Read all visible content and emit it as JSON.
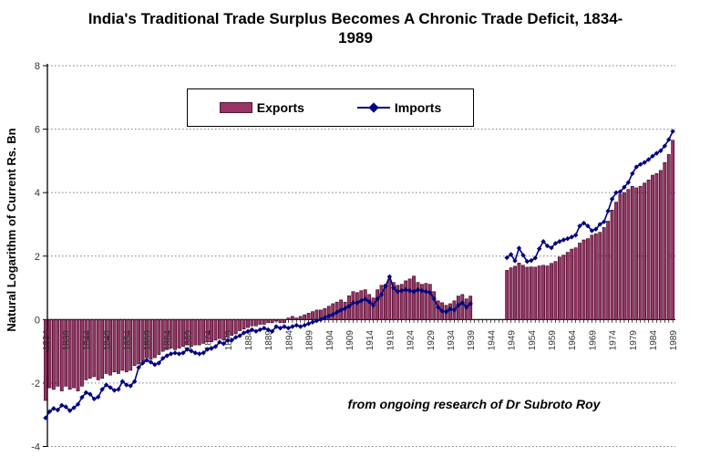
{
  "title": "India's Traditional Trade Surplus Becomes A Chronic Trade Deficit, 1834-1989",
  "annotation": "from ongoing research of Dr Subroto Roy",
  "legend": {
    "exports_label": "Exports",
    "imports_label": "Imports"
  },
  "colors": {
    "bar_fill": "#993366",
    "bar_border": "#33001a",
    "line": "#000080",
    "grid": "#7a7a7a",
    "axis": "#000000",
    "tick_text": "#333333"
  },
  "chart_data": {
    "type": "bar",
    "combo": true,
    "title": "India's Traditional Trade Surplus Becomes A Chronic Trade Deficit, 1834-1989",
    "xlabel": "",
    "ylabel": "Natural Logarithm of Current Rs. Bn",
    "ylim": [
      -4,
      8
    ],
    "y_ticks": [
      8,
      6,
      4,
      2,
      0,
      -2,
      -4
    ],
    "grid": "horizontal-dotted",
    "legend_position": "top-center",
    "x_start": 1834,
    "x_end": 1989,
    "data_gap_years": [
      1940,
      1947
    ],
    "x_tick_labels": [
      "1834",
      "1839",
      "1844",
      "1849",
      "1854",
      "1859",
      "1864",
      "1869",
      "1874",
      "1879",
      "1884",
      "1889",
      "1894",
      "1899",
      "1904",
      "1909",
      "1914",
      "1919",
      "1924",
      "1929",
      "1934",
      "1939",
      "1944",
      "1949",
      "1954",
      "1959",
      "1964",
      "1969",
      "1974",
      "1979",
      "1984",
      "1989"
    ],
    "series": [
      {
        "name": "Exports",
        "type": "bar",
        "color": "#993366",
        "values": [
          -2.55,
          -2.15,
          -2.2,
          -2.1,
          -2.25,
          -2.1,
          -2.2,
          -2.15,
          -2.25,
          -2.1,
          -1.9,
          -1.85,
          -1.8,
          -1.9,
          -1.85,
          -1.7,
          -1.75,
          -1.65,
          -1.7,
          -1.6,
          -1.65,
          -1.6,
          -1.45,
          -1.4,
          -1.3,
          -1.2,
          -1.25,
          -1.2,
          -1.1,
          -1.0,
          -0.95,
          -0.9,
          -0.95,
          -0.9,
          -0.85,
          -0.8,
          -0.85,
          -0.8,
          -0.8,
          -0.75,
          -0.7,
          -0.7,
          -0.65,
          -0.6,
          -0.65,
          -0.55,
          -0.5,
          -0.45,
          -0.35,
          -0.3,
          -0.25,
          -0.2,
          -0.2,
          -0.15,
          -0.15,
          -0.1,
          -0.1,
          -0.05,
          -0.1,
          -0.1,
          0.05,
          0.1,
          0.05,
          0.1,
          0.15,
          0.2,
          0.25,
          0.3,
          0.3,
          0.35,
          0.42,
          0.5,
          0.55,
          0.62,
          0.55,
          0.75,
          0.88,
          0.85,
          0.91,
          0.94,
          0.79,
          0.68,
          0.94,
          1.08,
          1.11,
          1.28,
          1.17,
          1.08,
          1.11,
          1.22,
          1.28,
          1.37,
          1.17,
          1.11,
          1.14,
          1.11,
          0.88,
          0.59,
          0.53,
          0.45,
          0.5,
          0.59,
          0.74,
          0.79,
          0.65,
          0.74,
          null,
          null,
          null,
          null,
          null,
          null,
          null,
          null,
          1.55,
          1.63,
          1.68,
          1.78,
          1.71,
          1.65,
          1.66,
          1.65,
          1.69,
          1.71,
          1.69,
          1.77,
          1.83,
          1.97,
          2.03,
          2.12,
          2.22,
          2.26,
          2.41,
          2.51,
          2.55,
          2.66,
          2.7,
          2.75,
          2.9,
          3.1,
          3.45,
          3.7,
          3.95,
          4.0,
          4.1,
          4.2,
          4.15,
          4.2,
          4.3,
          4.4,
          4.55,
          4.6,
          4.7,
          4.95,
          5.2,
          5.65
        ]
      },
      {
        "name": "Imports",
        "type": "line",
        "marker": "diamond",
        "color": "#000080",
        "values": [
          -3.1,
          -2.9,
          -2.8,
          -2.85,
          -2.7,
          -2.75,
          -2.87,
          -2.78,
          -2.67,
          -2.45,
          -2.3,
          -2.35,
          -2.5,
          -2.44,
          -2.2,
          -2.06,
          -2.14,
          -2.23,
          -2.2,
          -1.95,
          -2.06,
          -2.09,
          -1.95,
          -1.51,
          -1.37,
          -1.28,
          -1.34,
          -1.42,
          -1.37,
          -1.22,
          -1.14,
          -1.08,
          -1.05,
          -1.08,
          -1.05,
          -0.94,
          -0.99,
          -1.05,
          -1.08,
          -1.05,
          -0.94,
          -0.91,
          -0.85,
          -0.71,
          -0.76,
          -0.65,
          -0.65,
          -0.56,
          -0.51,
          -0.42,
          -0.37,
          -0.32,
          -0.37,
          -0.32,
          -0.27,
          -0.32,
          -0.37,
          -0.22,
          -0.27,
          -0.22,
          -0.27,
          -0.22,
          -0.18,
          -0.22,
          -0.18,
          -0.13,
          -0.08,
          -0.04,
          0.0,
          0.06,
          0.11,
          0.16,
          0.23,
          0.3,
          0.35,
          0.42,
          0.53,
          0.53,
          0.59,
          0.65,
          0.56,
          0.45,
          0.65,
          0.79,
          1.05,
          1.35,
          1.0,
          0.88,
          0.91,
          0.94,
          0.91,
          0.88,
          0.94,
          0.91,
          0.88,
          0.85,
          0.65,
          0.39,
          0.27,
          0.24,
          0.33,
          0.3,
          0.45,
          0.53,
          0.39,
          0.5,
          null,
          null,
          null,
          null,
          null,
          null,
          null,
          null,
          1.95,
          2.05,
          1.85,
          2.25,
          2.03,
          1.83,
          1.86,
          1.94,
          2.23,
          2.46,
          2.32,
          2.26,
          2.4,
          2.46,
          2.51,
          2.55,
          2.6,
          2.66,
          2.95,
          3.04,
          2.95,
          2.8,
          2.85,
          3.0,
          3.08,
          3.42,
          3.8,
          4.0,
          4.03,
          4.17,
          4.32,
          4.6,
          4.81,
          4.89,
          4.95,
          5.04,
          5.15,
          5.24,
          5.32,
          5.47,
          5.67,
          5.93
        ]
      }
    ]
  }
}
